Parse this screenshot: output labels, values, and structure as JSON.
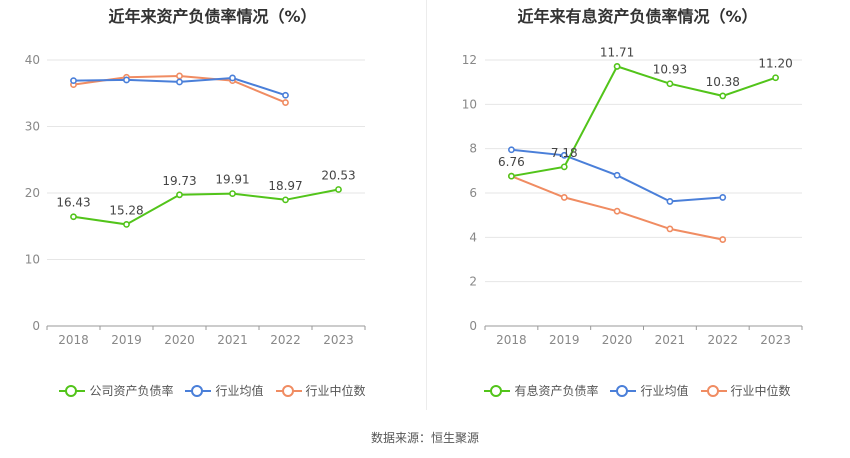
{
  "source": "数据来源：恒生聚源",
  "chart_data": [
    {
      "type": "line",
      "title": "近年来资产负债率情况（%）",
      "categories": [
        "2018",
        "2019",
        "2020",
        "2021",
        "2022",
        "2023"
      ],
      "ylim": [
        0,
        40
      ],
      "yticks": [
        0,
        10,
        20,
        30,
        40
      ],
      "grid": true,
      "legend_position": "bottom",
      "series": [
        {
          "name": "公司资产负债率",
          "color": "#52c41a",
          "values": [
            16.43,
            15.28,
            19.73,
            19.91,
            18.97,
            20.53
          ],
          "labels": [
            "16.43",
            "15.28",
            "19.73",
            "19.91",
            "18.97",
            "20.53"
          ]
        },
        {
          "name": "行业均值",
          "color": "#4a7fd9",
          "values": [
            36.9,
            37.0,
            36.7,
            37.3,
            34.7,
            null
          ]
        },
        {
          "name": "行业中位数",
          "color": "#f08c62",
          "values": [
            36.3,
            37.4,
            37.6,
            36.9,
            33.6,
            null
          ]
        }
      ]
    },
    {
      "type": "line",
      "title": "近年来有息资产负债率情况（%）",
      "categories": [
        "2018",
        "2019",
        "2020",
        "2021",
        "2022",
        "2023"
      ],
      "ylim": [
        0,
        12
      ],
      "yticks": [
        0,
        2,
        4,
        6,
        8,
        10,
        12
      ],
      "grid": true,
      "legend_position": "bottom",
      "series": [
        {
          "name": "有息资产负债率",
          "color": "#52c41a",
          "values": [
            6.76,
            7.18,
            11.71,
            10.93,
            10.38,
            11.2
          ],
          "labels": [
            "6.76",
            "7.18",
            "11.71",
            "10.93",
            "10.38",
            "11.20"
          ]
        },
        {
          "name": "行业均值",
          "color": "#4a7fd9",
          "values": [
            7.95,
            7.7,
            6.8,
            5.62,
            5.8,
            null
          ]
        },
        {
          "name": "行业中位数",
          "color": "#f08c62",
          "values": [
            6.76,
            5.8,
            5.18,
            4.38,
            3.9,
            null
          ]
        }
      ]
    }
  ]
}
